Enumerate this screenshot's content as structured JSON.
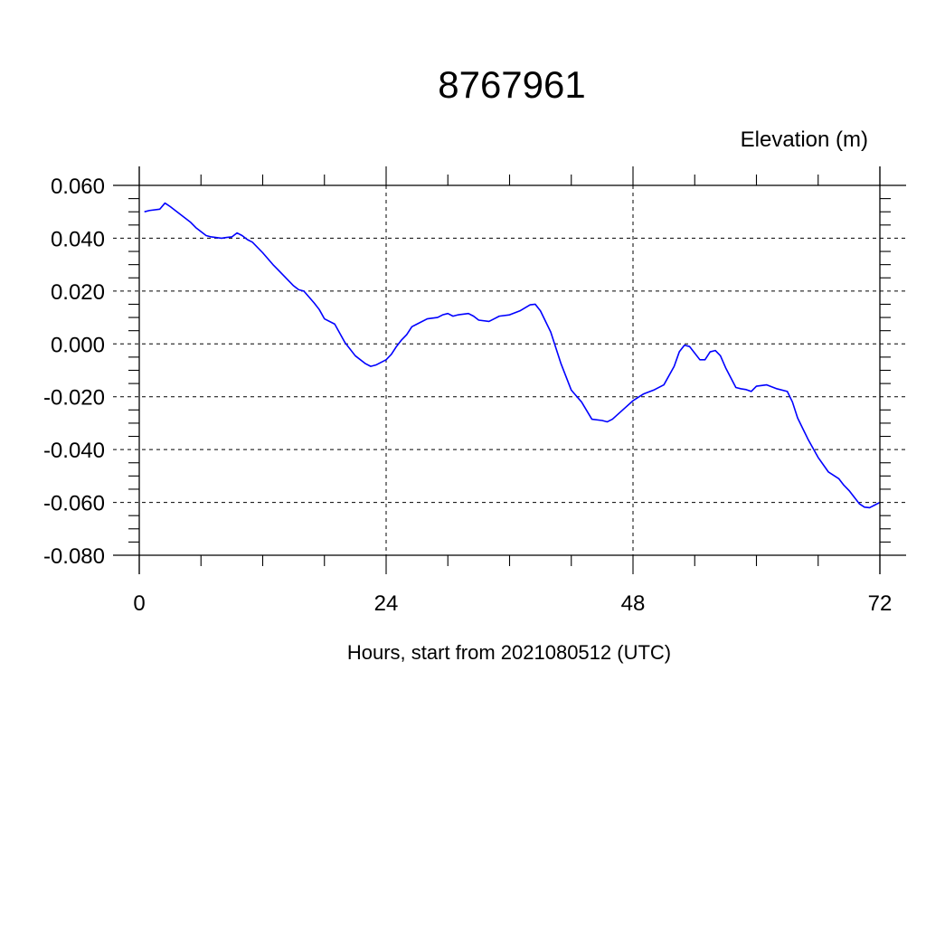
{
  "chart_data": {
    "type": "line",
    "title": "8767961",
    "ylabel": "Elevation (m)",
    "xlabel": "Hours, start from 2021080512 (UTC)",
    "xlim": [
      0,
      72
    ],
    "ylim": [
      -0.08,
      0.06
    ],
    "x_ticks": [
      0,
      24,
      48,
      72
    ],
    "x_tick_labels": [
      "0",
      "24",
      "48",
      "72"
    ],
    "x_minor_step": 6,
    "y_ticks": [
      0.06,
      0.04,
      0.02,
      0.0,
      -0.02,
      -0.04,
      -0.06,
      -0.08
    ],
    "y_tick_labels": [
      "0.060",
      "0.040",
      "0.020",
      "0.000",
      "-0.020",
      "-0.040",
      "-0.060",
      "-0.080"
    ],
    "y_minor_step": 0.005,
    "grid": true,
    "series": [
      {
        "color": "#0000ff",
        "x": [
          0.5,
          1,
          2,
          2.5,
          3,
          4,
          4.5,
          5,
          5.5,
          6,
          6.5,
          7,
          8,
          8.5,
          9,
          9.5,
          10,
          10.5,
          11,
          12,
          13,
          13.5,
          14,
          15,
          15.5,
          16,
          17,
          17.5,
          18,
          19,
          20,
          21,
          22,
          22.5,
          23,
          24,
          24.5,
          25,
          25.5,
          26,
          26.5,
          27,
          28,
          29,
          29.5,
          30,
          30.5,
          31,
          32,
          32.5,
          33,
          34,
          34.5,
          35,
          36,
          37,
          38,
          38.5,
          39,
          40,
          41,
          42,
          43,
          44,
          45,
          45.5,
          46,
          47,
          48,
          49,
          50,
          51,
          52,
          52.5,
          53,
          53.5,
          54,
          54.5,
          55,
          55.5,
          56,
          56.5,
          57,
          58,
          58.5,
          59,
          59.5,
          60,
          61,
          62,
          63,
          63.5,
          64,
          65,
          66,
          67,
          68,
          68.5,
          69,
          70,
          70.5,
          71,
          71.5,
          72
        ],
        "y": [
          0.05,
          0.0505,
          0.051,
          0.0533,
          0.052,
          0.049,
          0.0475,
          0.046,
          0.044,
          0.0425,
          0.041,
          0.0405,
          0.04,
          0.0403,
          0.0405,
          0.042,
          0.041,
          0.0395,
          0.0385,
          0.0345,
          0.03,
          0.028,
          0.026,
          0.022,
          0.0205,
          0.02,
          0.0155,
          0.013,
          0.0095,
          0.0075,
          0.0005,
          -0.0045,
          -0.0075,
          -0.0085,
          -0.008,
          -0.006,
          -0.004,
          -0.001,
          0.0015,
          0.0035,
          0.0065,
          0.0075,
          0.0095,
          0.01,
          0.011,
          0.0115,
          0.0105,
          0.011,
          0.0115,
          0.0105,
          0.009,
          0.0085,
          0.0095,
          0.0105,
          0.011,
          0.0125,
          0.0148,
          0.015,
          0.0125,
          0.0045,
          -0.0075,
          -0.0175,
          -0.022,
          -0.0285,
          -0.029,
          -0.0295,
          -0.0285,
          -0.025,
          -0.0215,
          -0.019,
          -0.0175,
          -0.0155,
          -0.0085,
          -0.003,
          -0.0005,
          -0.001,
          -0.0035,
          -0.006,
          -0.006,
          -0.003,
          -0.0025,
          -0.0045,
          -0.009,
          -0.0165,
          -0.017,
          -0.0173,
          -0.018,
          -0.016,
          -0.0155,
          -0.017,
          -0.018,
          -0.022,
          -0.028,
          -0.036,
          -0.043,
          -0.0485,
          -0.051,
          -0.0535,
          -0.0555,
          -0.0605,
          -0.0618,
          -0.062,
          -0.061,
          -0.06
        ]
      }
    ]
  }
}
